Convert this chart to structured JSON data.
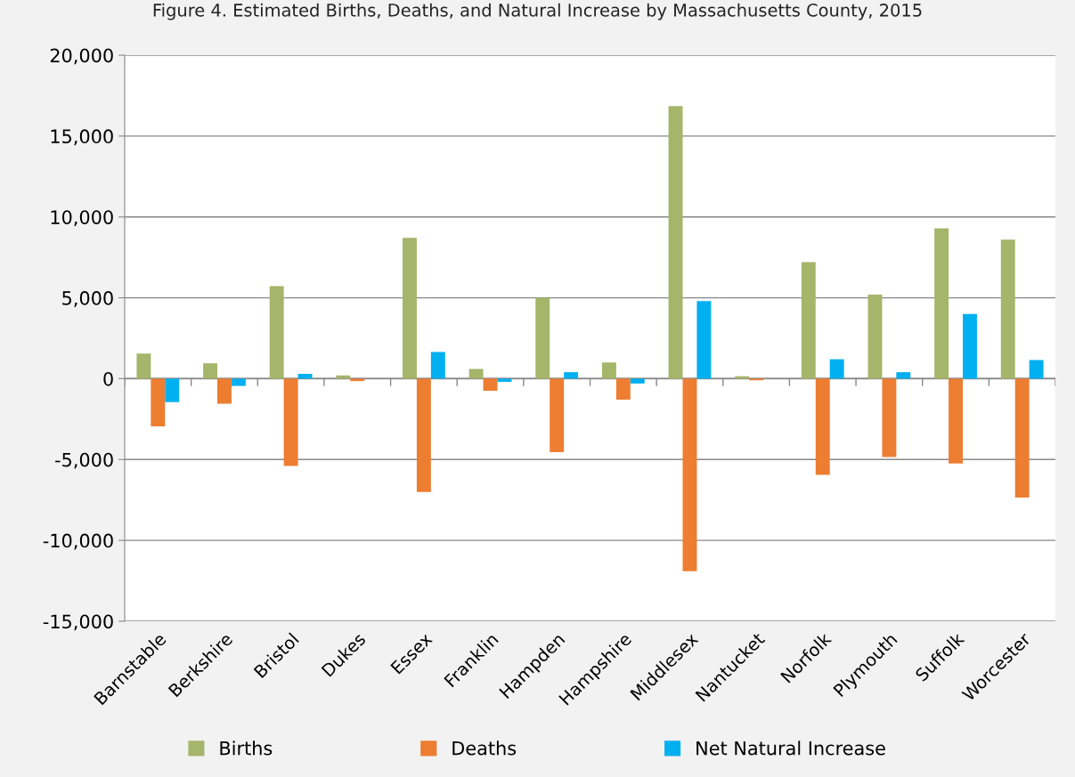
{
  "chart_data": {
    "type": "bar",
    "title": "Figure 4. Estimated Births, Deaths, and Natural Increase by Massachusetts County, 2015",
    "categories": [
      "Barnstable",
      "Berkshire",
      "Bristol",
      "Dukes",
      "Essex",
      "Franklin",
      "Hampden",
      "Hampshire",
      "Middlesex",
      "Nantucket",
      "Norfolk",
      "Plymouth",
      "Suffolk",
      "Worcester"
    ],
    "series": [
      {
        "name": "Births",
        "color": "#a5b56a",
        "values": [
          1550,
          950,
          5720,
          200,
          8700,
          600,
          5000,
          1000,
          16850,
          150,
          7200,
          5200,
          9300,
          8600
        ]
      },
      {
        "name": "Deaths",
        "color": "#ed7d31",
        "values": [
          -2950,
          -1550,
          -5400,
          -150,
          -7000,
          -750,
          -4550,
          -1300,
          -11900,
          -100,
          -5950,
          -4850,
          -5250,
          -7350
        ]
      },
      {
        "name": "Net Natural Increase",
        "color": "#00b0f0",
        "values": [
          -1450,
          -450,
          300,
          null,
          1650,
          -200,
          400,
          -300,
          4800,
          null,
          1200,
          400,
          4000,
          1150
        ]
      }
    ],
    "ylim": [
      -15000,
      20000
    ],
    "yticks": [
      {
        "value": -15000,
        "label": "-15,000"
      },
      {
        "value": -10000,
        "label": "-10,000"
      },
      {
        "value": -5000,
        "label": "-5,000"
      },
      0,
      {
        "value": 5000,
        "label": "5,000"
      },
      {
        "value": 10000,
        "label": "10,000"
      },
      {
        "value": 15000,
        "label": "15,000"
      },
      {
        "value": 20000,
        "label": "20,000"
      }
    ],
    "grid": "y",
    "legend": "bottom"
  }
}
